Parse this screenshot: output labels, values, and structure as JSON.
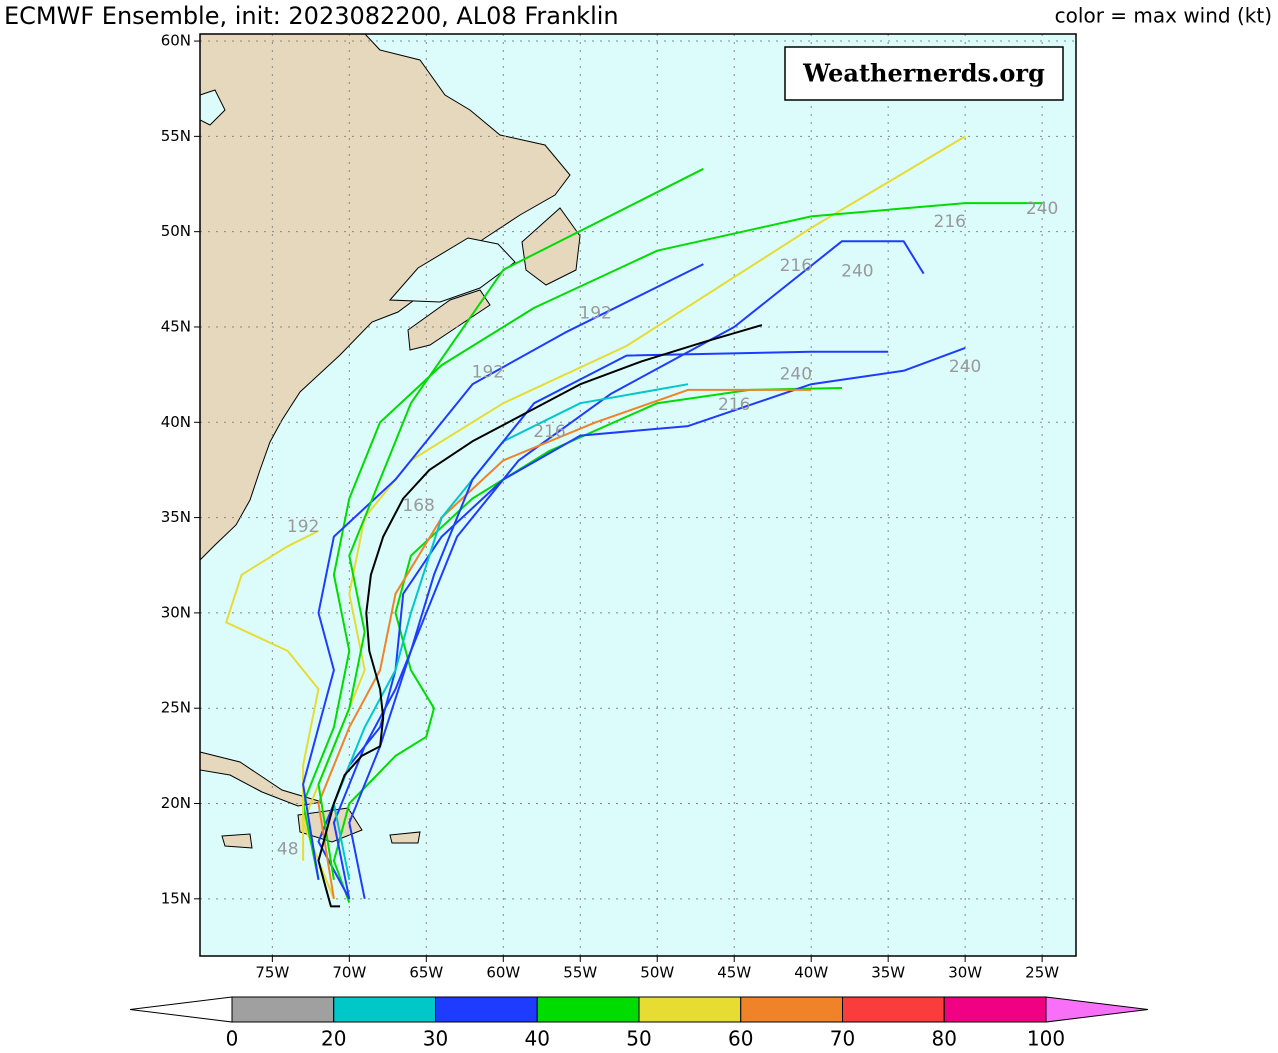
{
  "chart_data": {
    "type": "map",
    "title": "ECMWF Ensemble, init: 2023082200, AL08 Franklin",
    "subtitle": "color = max wind (kt)",
    "watermark": "Weathernerds.org",
    "xlim": [
      -79.7,
      -22.8
    ],
    "ylim": [
      12.0,
      60.37
    ],
    "xticks": [
      {
        "value": -75,
        "label": "75W"
      },
      {
        "value": -70,
        "label": "70W"
      },
      {
        "value": -65,
        "label": "65W"
      },
      {
        "value": -60,
        "label": "60W"
      },
      {
        "value": -55,
        "label": "55W"
      },
      {
        "value": -50,
        "label": "50W"
      },
      {
        "value": -45,
        "label": "45W"
      },
      {
        "value": -40,
        "label": "40W"
      },
      {
        "value": -35,
        "label": "35W"
      },
      {
        "value": -30,
        "label": "30W"
      },
      {
        "value": -25,
        "label": "25W"
      }
    ],
    "yticks": [
      {
        "value": 15,
        "label": "15N"
      },
      {
        "value": 20,
        "label": "20N"
      },
      {
        "value": 25,
        "label": "25N"
      },
      {
        "value": 30,
        "label": "30N"
      },
      {
        "value": 35,
        "label": "35N"
      },
      {
        "value": 40,
        "label": "40N"
      },
      {
        "value": 45,
        "label": "45N"
      },
      {
        "value": 50,
        "label": "50N"
      },
      {
        "value": 55,
        "label": "55N"
      },
      {
        "value": 60,
        "label": "60N"
      }
    ],
    "grid": true,
    "tracks": [
      {
        "color": "#00dc00",
        "lon": [
          -70,
          -71,
          -70,
          -67,
          -65,
          -64.5,
          -66,
          -67,
          -66,
          -62,
          -57,
          -50,
          -44,
          -38
        ],
        "lat": [
          14.8,
          17,
          20,
          22.5,
          23.5,
          25,
          27,
          30,
          33,
          36,
          38.5,
          41,
          41.7,
          41.8
        ]
      },
      {
        "color": "#1e3cff",
        "lon": [
          -70,
          -72,
          -70,
          -68,
          -67,
          -66.5,
          -64,
          -60,
          -55,
          -48,
          -40,
          -34,
          -30
        ],
        "lat": [
          15,
          18,
          22,
          24,
          27,
          31,
          34,
          37,
          39.3,
          39.8,
          42,
          42.7,
          43.9
        ]
      },
      {
        "color": "#e6dc32",
        "lon": [
          -71,
          -73,
          -71,
          -69,
          -70,
          -69,
          -66,
          -60,
          -52,
          -40,
          -30
        ],
        "lat": [
          15,
          19,
          23,
          27,
          31,
          35,
          38,
          41,
          44,
          50.2,
          55
        ]
      },
      {
        "color": "#00dc00",
        "lon": [
          -72,
          -73,
          -71,
          -70,
          -71,
          -70,
          -68,
          -64,
          -58,
          -50,
          -40,
          -30,
          -25
        ],
        "lat": [
          16,
          20,
          24,
          28,
          32,
          36,
          40,
          43,
          46,
          49,
          50.8,
          51.5,
          51.5
        ]
      },
      {
        "color": "#1e3cff",
        "lon": [
          -70,
          -71,
          -69,
          -67,
          -65,
          -63,
          -59,
          -53,
          -45,
          -38,
          -34,
          -32.7
        ],
        "lat": [
          15,
          19,
          23,
          26,
          30,
          34,
          38,
          41.5,
          45,
          49.5,
          49.5,
          47.8
        ]
      },
      {
        "color": "#f08228",
        "lon": [
          -71,
          -72,
          -70,
          -68,
          -67,
          -64,
          -60,
          -54,
          -48,
          -40
        ],
        "lat": [
          15,
          20,
          24,
          27,
          31,
          35,
          38,
          40,
          41.7,
          41.7
        ]
      },
      {
        "color": "#e6dc32",
        "lon": [
          -73,
          -73,
          -72,
          -74,
          -78,
          -77,
          -74,
          -72
        ],
        "lat": [
          17,
          22,
          26,
          28,
          29.5,
          32,
          33.5,
          34.3
        ]
      },
      {
        "color": "#1e3cff",
        "lon": [
          -72,
          -73,
          -72,
          -71,
          -72,
          -71,
          -67,
          -62,
          -56,
          -47
        ],
        "lat": [
          16,
          21,
          24,
          27,
          30,
          34,
          37,
          42,
          44.7,
          48.3
        ]
      },
      {
        "color": "#00dc00",
        "lon": [
          -71,
          -72,
          -70,
          -69,
          -70,
          -68,
          -66,
          -60,
          -47
        ],
        "lat": [
          16,
          21,
          25,
          29,
          33,
          37,
          41,
          48,
          53.3
        ]
      },
      {
        "color": "#00c8c8",
        "lon": [
          -70,
          -71,
          -69,
          -67,
          -66,
          -64,
          -60,
          -55,
          -48
        ],
        "lat": [
          16,
          20,
          24,
          27,
          30,
          35,
          39,
          41,
          42
        ]
      },
      {
        "color": "#1e3cff",
        "lon": [
          -69,
          -70,
          -68,
          -66,
          -64.5,
          -62,
          -58,
          -52,
          -40,
          -35
        ],
        "lat": [
          15,
          19,
          23,
          28,
          32,
          37,
          41,
          43.5,
          43.7,
          43.7
        ]
      }
    ],
    "mean_track": {
      "color": "#000000",
      "lon": [
        -70.6,
        -71.2,
        -71.5,
        -72,
        -71.5,
        -71,
        -70.3,
        -69.2,
        -68,
        -67.8,
        -68,
        -68.7,
        -68.9,
        -68.6,
        -67.8,
        -66.5,
        -64.8,
        -62,
        -58.5,
        -55,
        -51,
        -47,
        -43.2
      ],
      "lat": [
        14.6,
        14.6,
        15.5,
        17,
        18.5,
        20,
        21.5,
        22.5,
        23,
        24.5,
        26,
        28,
        30,
        32,
        34,
        36,
        37.5,
        39,
        40.5,
        42,
        43.2,
        44.2,
        45.1
      ]
    },
    "hour_labels": [
      {
        "text": "240",
        "lon": -25,
        "lat": 51.2
      },
      {
        "text": "216",
        "lon": -31,
        "lat": 50.5
      },
      {
        "text": "240",
        "lon": -37,
        "lat": 47.9
      },
      {
        "text": "216",
        "lon": -41,
        "lat": 48.2
      },
      {
        "text": "240",
        "lon": -30,
        "lat": 42.9
      },
      {
        "text": "240",
        "lon": -41,
        "lat": 42.5
      },
      {
        "text": "216",
        "lon": -45,
        "lat": 40.9
      },
      {
        "text": "216",
        "lon": -57,
        "lat": 39.5
      },
      {
        "text": "192",
        "lon": -54,
        "lat": 45.7
      },
      {
        "text": "192",
        "lon": -61,
        "lat": 42.6
      },
      {
        "text": "192",
        "lon": -73,
        "lat": 34.5
      },
      {
        "text": "168",
        "lon": -65.5,
        "lat": 35.6
      },
      {
        "text": "48",
        "lon": -74,
        "lat": 17.6
      }
    ],
    "colorbar": {
      "levels": [
        0,
        20,
        30,
        40,
        50,
        60,
        70,
        80,
        100
      ],
      "colors": [
        "#ffffff",
        "#a0a0a0",
        "#00c8c8",
        "#1e3cff",
        "#00dc00",
        "#e6dc32",
        "#f08228",
        "#fa3c3c",
        "#f00082",
        "#f870f8"
      ]
    }
  }
}
